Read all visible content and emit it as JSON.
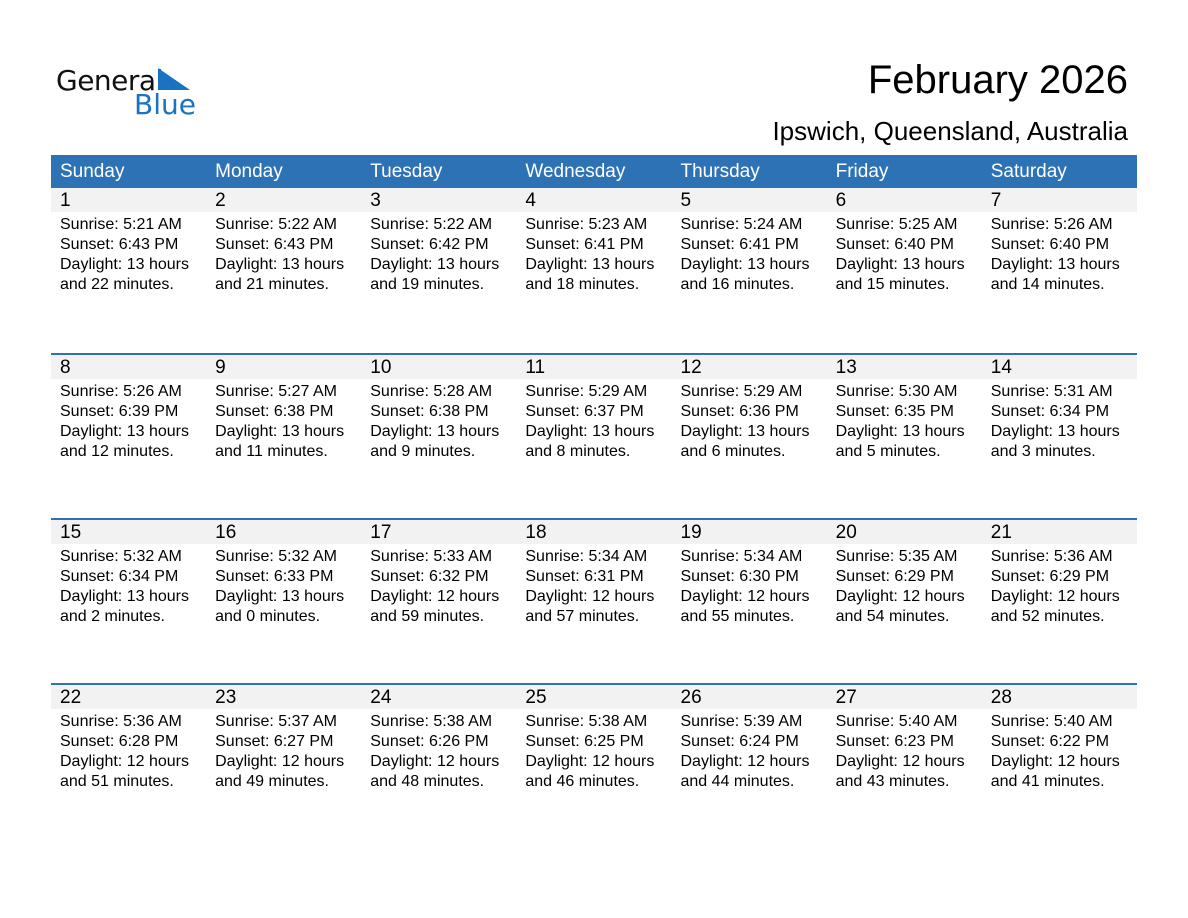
{
  "logo": {
    "text1": "General",
    "text2": "Blue"
  },
  "title": "February 2026",
  "subtitle": "Ipswich, Queensland, Australia",
  "colors": {
    "header": "#2e72b6",
    "band": "#f2f2f2",
    "logo_blue": "#1a73c0"
  },
  "days": [
    "Sunday",
    "Monday",
    "Tuesday",
    "Wednesday",
    "Thursday",
    "Friday",
    "Saturday"
  ],
  "weeks": [
    [
      [
        "1",
        "5:21 AM",
        "6:43 PM",
        "13 hours",
        "22 minutes."
      ],
      [
        "2",
        "5:22 AM",
        "6:43 PM",
        "13 hours",
        "21 minutes."
      ],
      [
        "3",
        "5:22 AM",
        "6:42 PM",
        "13 hours",
        "19 minutes."
      ],
      [
        "4",
        "5:23 AM",
        "6:41 PM",
        "13 hours",
        "18 minutes."
      ],
      [
        "5",
        "5:24 AM",
        "6:41 PM",
        "13 hours",
        "16 minutes."
      ],
      [
        "6",
        "5:25 AM",
        "6:40 PM",
        "13 hours",
        "15 minutes."
      ],
      [
        "7",
        "5:26 AM",
        "6:40 PM",
        "13 hours",
        "14 minutes."
      ]
    ],
    [
      [
        "8",
        "5:26 AM",
        "6:39 PM",
        "13 hours",
        "12 minutes."
      ],
      [
        "9",
        "5:27 AM",
        "6:38 PM",
        "13 hours",
        "11 minutes."
      ],
      [
        "10",
        "5:28 AM",
        "6:38 PM",
        "13 hours",
        "9 minutes."
      ],
      [
        "11",
        "5:29 AM",
        "6:37 PM",
        "13 hours",
        "8 minutes."
      ],
      [
        "12",
        "5:29 AM",
        "6:36 PM",
        "13 hours",
        "6 minutes."
      ],
      [
        "13",
        "5:30 AM",
        "6:35 PM",
        "13 hours",
        "5 minutes."
      ],
      [
        "14",
        "5:31 AM",
        "6:34 PM",
        "13 hours",
        "3 minutes."
      ]
    ],
    [
      [
        "15",
        "5:32 AM",
        "6:34 PM",
        "13 hours",
        "2 minutes."
      ],
      [
        "16",
        "5:32 AM",
        "6:33 PM",
        "13 hours",
        "0 minutes."
      ],
      [
        "17",
        "5:33 AM",
        "6:32 PM",
        "12 hours",
        "59 minutes."
      ],
      [
        "18",
        "5:34 AM",
        "6:31 PM",
        "12 hours",
        "57 minutes."
      ],
      [
        "19",
        "5:34 AM",
        "6:30 PM",
        "12 hours",
        "55 minutes."
      ],
      [
        "20",
        "5:35 AM",
        "6:29 PM",
        "12 hours",
        "54 minutes."
      ],
      [
        "21",
        "5:36 AM",
        "6:29 PM",
        "12 hours",
        "52 minutes."
      ]
    ],
    [
      [
        "22",
        "5:36 AM",
        "6:28 PM",
        "12 hours",
        "51 minutes."
      ],
      [
        "23",
        "5:37 AM",
        "6:27 PM",
        "12 hours",
        "49 minutes."
      ],
      [
        "24",
        "5:38 AM",
        "6:26 PM",
        "12 hours",
        "48 minutes."
      ],
      [
        "25",
        "5:38 AM",
        "6:25 PM",
        "12 hours",
        "46 minutes."
      ],
      [
        "26",
        "5:39 AM",
        "6:24 PM",
        "12 hours",
        "44 minutes."
      ],
      [
        "27",
        "5:40 AM",
        "6:23 PM",
        "12 hours",
        "43 minutes."
      ],
      [
        "28",
        "5:40 AM",
        "6:22 PM",
        "12 hours",
        "41 minutes."
      ]
    ]
  ],
  "labels": {
    "sunrise": "Sunrise: ",
    "sunset": "Sunset: ",
    "daylight": "Daylight: ",
    "and": "and "
  }
}
